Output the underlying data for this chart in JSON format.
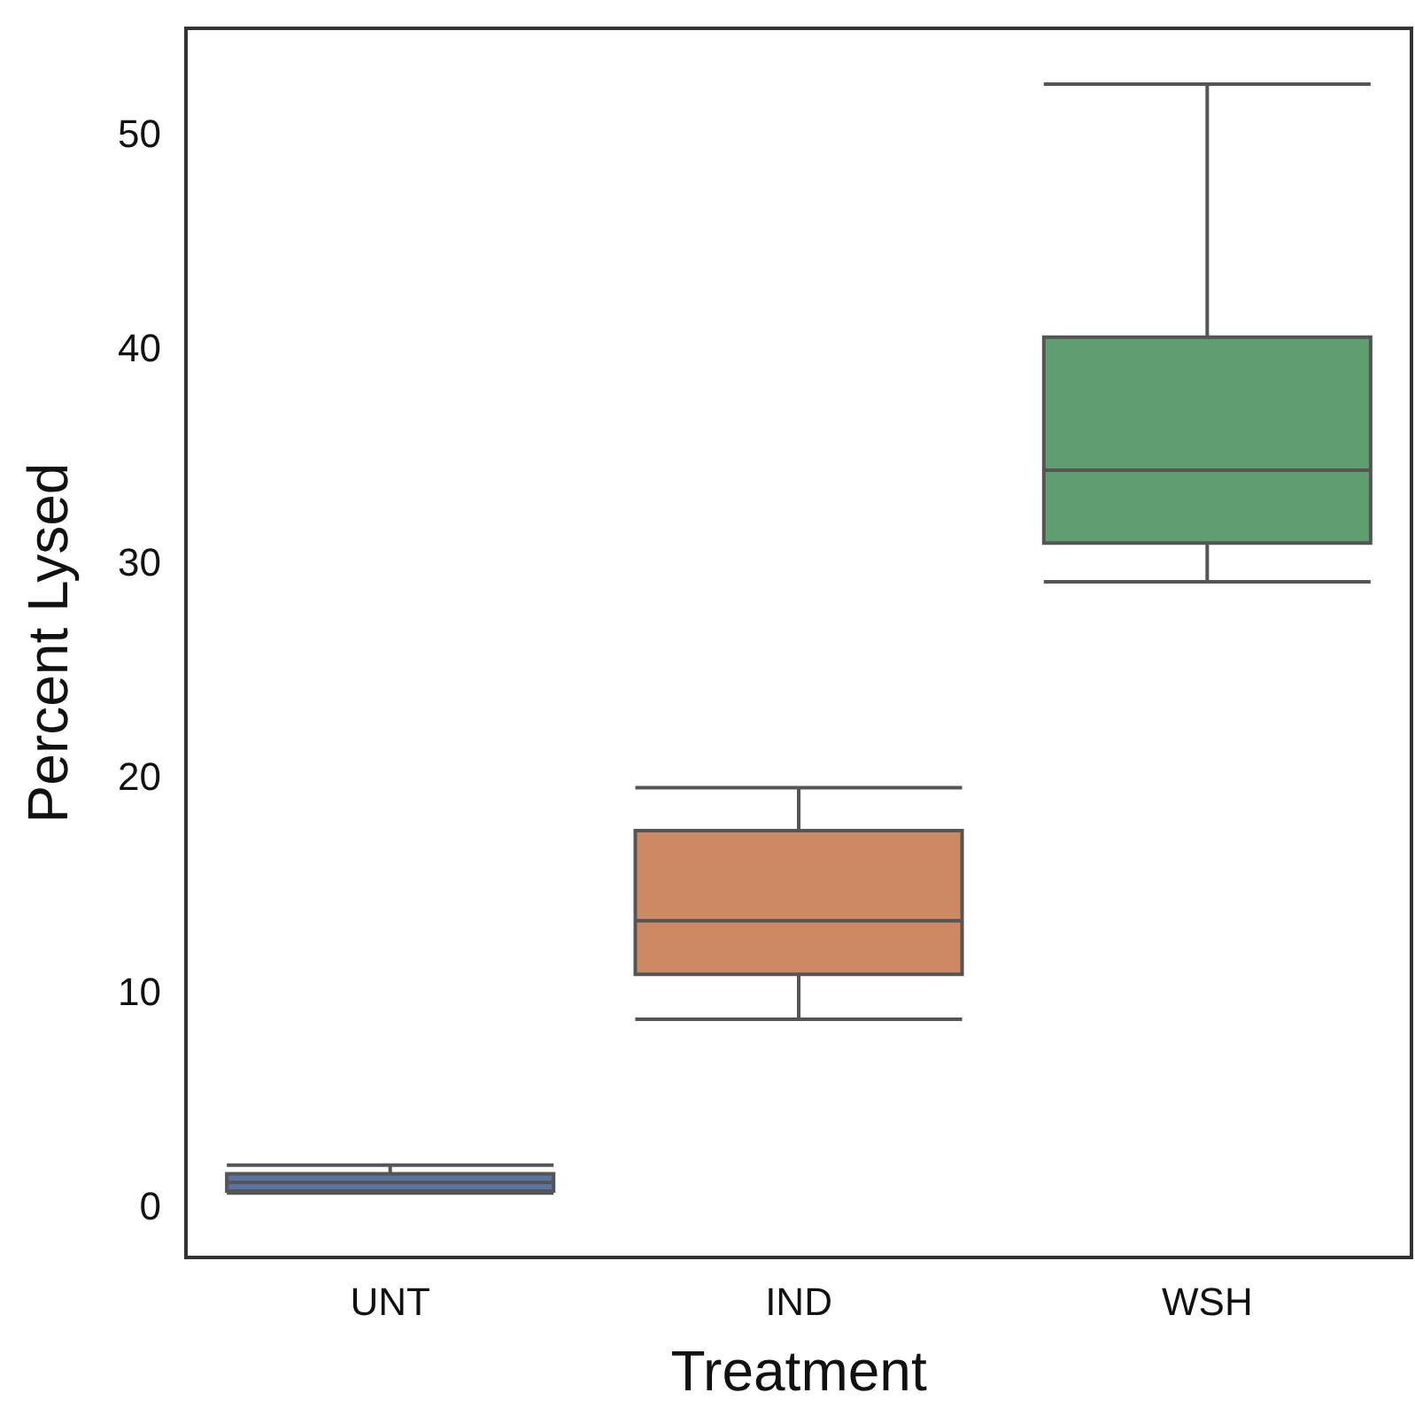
{
  "chart_data": {
    "type": "box",
    "xlabel": "Treatment",
    "ylabel": "Percent Lysed",
    "categories": [
      "UNT",
      "IND",
      "WSH"
    ],
    "boxes": [
      {
        "low": 0.6,
        "q1": 0.7,
        "median": 1.1,
        "q3": 1.5,
        "high": 1.9
      },
      {
        "low": 8.7,
        "q1": 10.8,
        "median": 13.3,
        "q3": 17.5,
        "high": 19.5
      },
      {
        "low": 29.1,
        "q1": 30.9,
        "median": 34.3,
        "q3": 40.5,
        "high": 52.3
      }
    ],
    "colors": [
      "#5975a4",
      "#cc8963",
      "#5f9e6e"
    ],
    "ylim": [
      -2.4,
      54.9
    ],
    "yticks": [
      0,
      10,
      20,
      30,
      40,
      50
    ]
  }
}
